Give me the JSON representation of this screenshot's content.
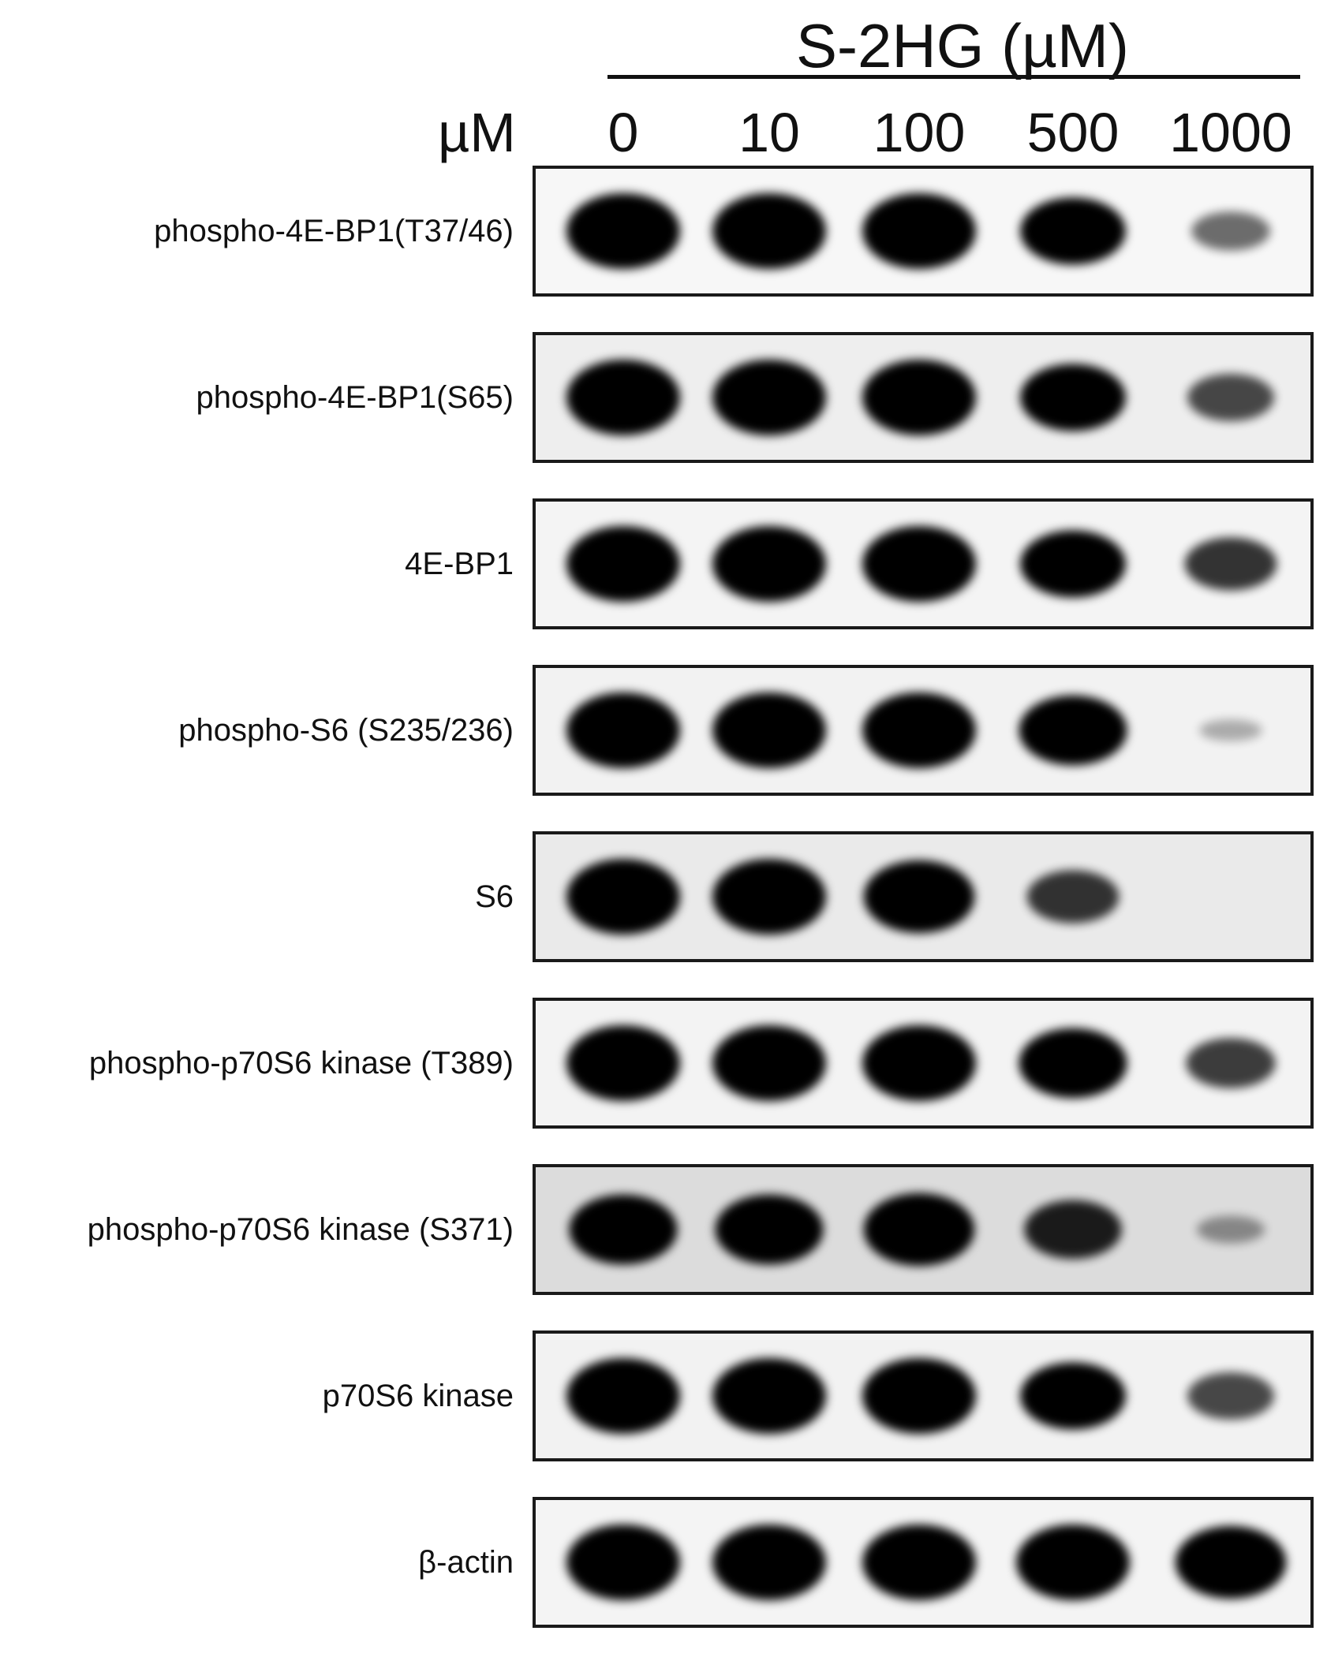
{
  "header": {
    "treatment": "S-2HG (µM)",
    "unit": "µM"
  },
  "lanes": [
    "0",
    "10",
    "100",
    "500",
    "1000"
  ],
  "rows": [
    {
      "label": "phospho-4E-BP1(T37/46)",
      "intensity": [
        1.0,
        1.0,
        1.0,
        0.85,
        0.35
      ],
      "background": "#f7f7f7"
    },
    {
      "label": "phospho-4E-BP1(S65)",
      "intensity": [
        1.0,
        1.0,
        1.0,
        0.85,
        0.5
      ],
      "background": "#eeeeee"
    },
    {
      "label": "4E-BP1",
      "intensity": [
        1.0,
        1.0,
        1.0,
        0.85,
        0.6
      ],
      "background": "#f4f4f4"
    },
    {
      "label": "phospho-S6 (S235/236)",
      "intensity": [
        1.0,
        1.0,
        1.0,
        0.9,
        0.05
      ],
      "background": "#f2f2f2"
    },
    {
      "label": "S6",
      "intensity": [
        1.0,
        1.0,
        0.95,
        0.6,
        0.0
      ],
      "background": "#eaeaea"
    },
    {
      "label": "phospho-p70S6 kinase (T389)",
      "intensity": [
        1.0,
        1.0,
        1.0,
        0.9,
        0.55
      ],
      "background": "#f3f3f3"
    },
    {
      "label": "phospho-p70S6 kinase (S371)",
      "intensity": [
        0.9,
        0.9,
        0.95,
        0.7,
        0.15
      ],
      "background": "#dcdcdc"
    },
    {
      "label": "p70S6 kinase",
      "intensity": [
        1.0,
        1.0,
        1.0,
        0.85,
        0.5
      ],
      "background": "#f2f2f2"
    },
    {
      "label": "β-actin",
      "intensity": [
        1.0,
        1.0,
        1.0,
        1.0,
        0.95
      ],
      "background": "#f4f4f4"
    }
  ]
}
